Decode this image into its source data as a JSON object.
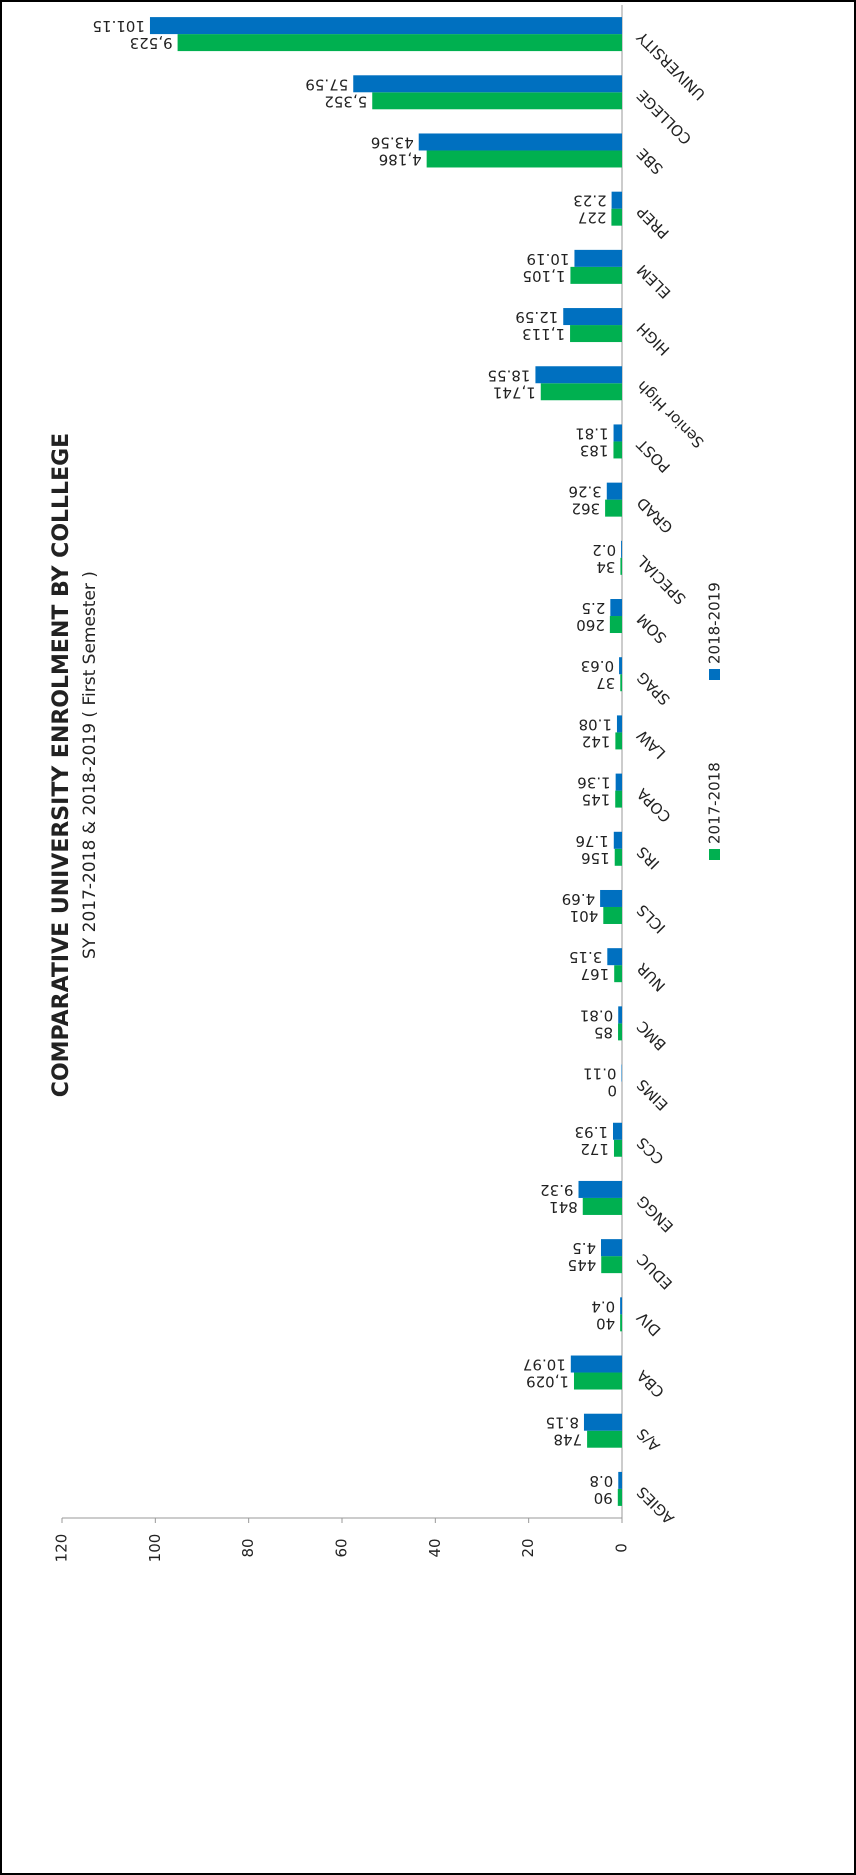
{
  "chart_data": {
    "type": "bar",
    "title": "COMPARATIVE UNIVERSITY ENROLMENT BY COLLLEGE",
    "subtitle": "SY 2017-2018 & 2018-2019 ( First Semester )",
    "categories": [
      "AGIES",
      "A/S",
      "CBA",
      "DIV",
      "EDUC",
      "ENGG",
      "CCS",
      "EIMS",
      "BMC",
      "NUR",
      "ICLS",
      "IRS",
      "COPA",
      "LAW",
      "SPAG",
      "SOM",
      "SPECIAL",
      "GRAD",
      "POST",
      "Senior High",
      "HIGH",
      "ELEM",
      "PREP",
      "SBE",
      "COLLEGE",
      "UNIVERSITY"
    ],
    "series": [
      {
        "name": "2017-2018",
        "color": "#00b050",
        "values": [
          0.9,
          7.48,
          10.29,
          0.4,
          4.45,
          8.41,
          1.72,
          0,
          0.85,
          1.67,
          4.01,
          1.56,
          1.45,
          1.42,
          0.37,
          2.6,
          0.34,
          3.62,
          1.83,
          17.41,
          11.13,
          11.05,
          2.27,
          41.86,
          53.52,
          95.23
        ],
        "value_labels": [
          "90",
          "748",
          "1,029",
          "40",
          "445",
          "841",
          "172",
          "0",
          "85",
          "167",
          "401",
          "156",
          "145",
          "142",
          "37",
          "260",
          "34",
          "362",
          "183",
          "1,741",
          "1,113",
          "1,105",
          "227",
          "4,186",
          "5,352",
          "9,523"
        ]
      },
      {
        "name": "2018-2019",
        "color": "#0070c0",
        "values": [
          0.8,
          8.15,
          10.97,
          0.4,
          4.5,
          9.32,
          1.93,
          0.11,
          0.81,
          3.15,
          4.69,
          1.76,
          1.36,
          1.08,
          0.63,
          2.5,
          0.2,
          3.26,
          1.81,
          18.55,
          12.59,
          10.19,
          2.23,
          43.56,
          57.59,
          101.15
        ]
      }
    ],
    "ylim": [
      0,
      120
    ],
    "yticks": [
      0,
      20,
      40,
      60,
      80,
      100,
      120
    ],
    "grid": false
  }
}
